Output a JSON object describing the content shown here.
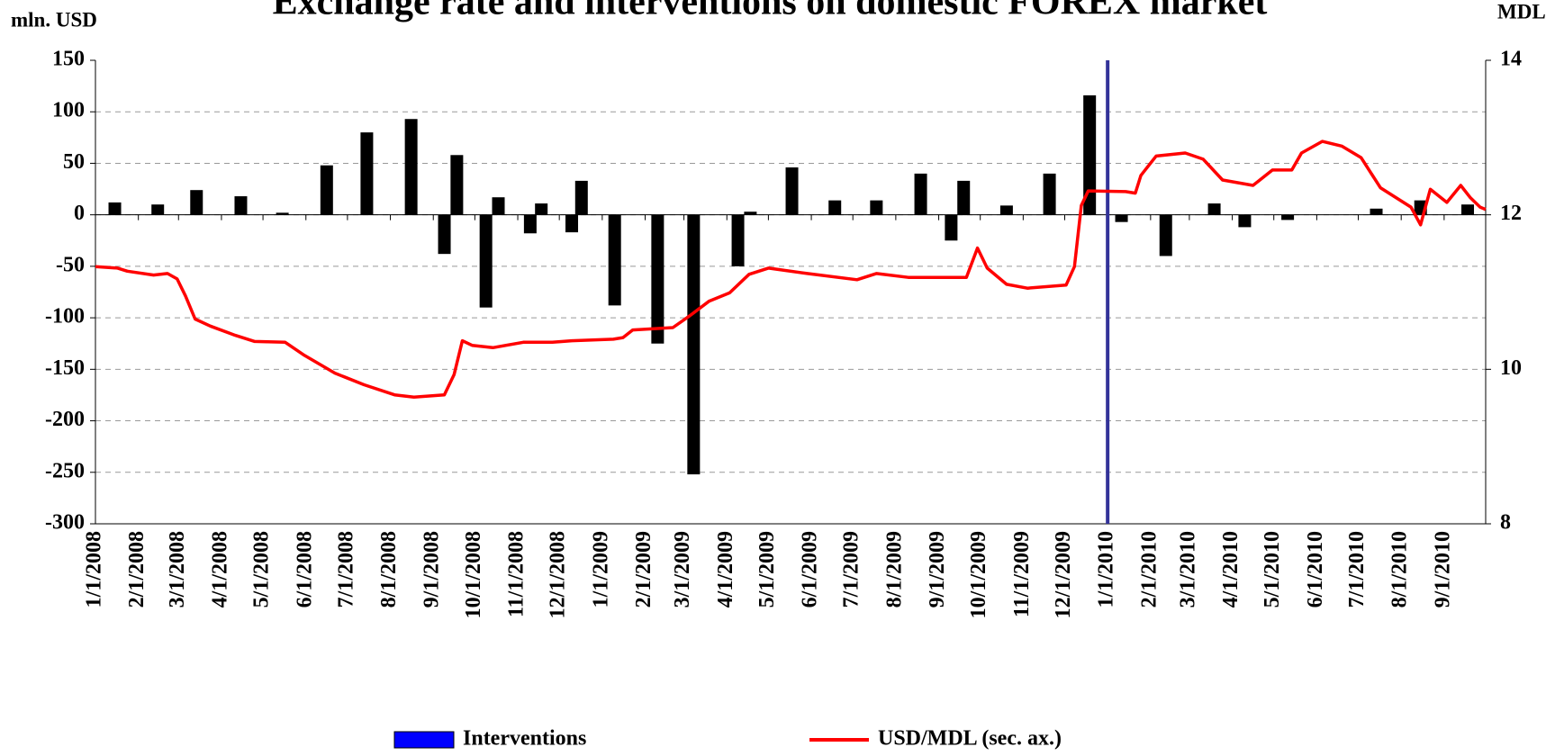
{
  "chart_data": {
    "type": "bar_line",
    "title": "Exchange rate and interventions on domestic FOREX market",
    "y_label": "mln. USD",
    "y2_label": "MDL",
    "xlim": [
      "1/1/2008",
      "10/1/2010"
    ],
    "xticks": [
      "1/1/2008",
      "2/1/2008",
      "3/1/2008",
      "4/1/2008",
      "5/1/2008",
      "6/1/2008",
      "7/1/2008",
      "8/1/2008",
      "9/1/2008",
      "10/1/2008",
      "11/1/2008",
      "12/1/2008",
      "1/1/2009",
      "2/1/2009",
      "3/1/2009",
      "4/1/2009",
      "5/1/2009",
      "6/1/2009",
      "7/1/2009",
      "8/1/2009",
      "9/1/2009",
      "10/1/2009",
      "11/1/2009",
      "12/1/2009",
      "1/1/2010",
      "2/1/2010",
      "3/1/2010",
      "4/1/2010",
      "5/1/2010",
      "6/1/2010",
      "7/1/2010",
      "8/1/2010",
      "9/1/2010"
    ],
    "ylim": [
      -300,
      150
    ],
    "yticks": [
      150,
      100,
      50,
      0,
      -50,
      -100,
      -150,
      -200,
      -250,
      -300
    ],
    "y2lim": [
      8,
      14
    ],
    "y2ticks": [
      14,
      12,
      10,
      8
    ],
    "grid": true,
    "marker_line": {
      "x": "1/1/2010",
      "color": "#333399"
    },
    "series": [
      {
        "name": "Interventions",
        "type": "bar",
        "color": "#000000",
        "legend_color": "#0000ff",
        "x": [
          "1/15/2008",
          "2/15/2008",
          "3/14/2008",
          "4/15/2008",
          "5/15/2008",
          "6/16/2008",
          "7/15/2008",
          "8/16/2008",
          "9/9/2008",
          "9/18/2008",
          "10/9/2008",
          "10/18/2008",
          "11/10/2008",
          "11/18/2008",
          "12/10/2008",
          "12/17/2008",
          "1/10/2009",
          "2/10/2009",
          "3/8/2009",
          "4/9/2009",
          "4/18/2009",
          "5/18/2009",
          "6/18/2009",
          "7/18/2009",
          "8/19/2009",
          "9/10/2009",
          "9/19/2009",
          "10/20/2009",
          "11/20/2009",
          "12/19/2009",
          "1/11/2010",
          "2/12/2010",
          "3/19/2010",
          "4/10/2010",
          "5/11/2010",
          "7/14/2010",
          "8/15/2010",
          "9/18/2010"
        ],
        "values": [
          12,
          10,
          24,
          18,
          2,
          48,
          80,
          93,
          -38,
          58,
          -90,
          17,
          -18,
          11,
          -17,
          33,
          -88,
          -125,
          -252,
          -50,
          3,
          46,
          14,
          14,
          40,
          -25,
          33,
          9,
          40,
          116,
          -7,
          -40,
          11,
          -12,
          -5,
          6,
          14,
          10
        ]
      },
      {
        "name": "USD/MDL (sec. ax.)",
        "type": "line",
        "axis": "y2",
        "color": "#ff0000",
        "x": [
          "1/1/2008",
          "1/17/2008",
          "1/24/2008",
          "2/12/2008",
          "2/22/2008",
          "2/29/2008",
          "3/6/2008",
          "3/13/2008",
          "3/24/2008",
          "4/11/2008",
          "4/25/2008",
          "5/17/2008",
          "5/31/2008",
          "6/22/2008",
          "7/13/2008",
          "8/4/2008",
          "8/18/2008",
          "9/9/2008",
          "9/16/2008",
          "9/22/2008",
          "9/29/2008",
          "10/14/2008",
          "11/5/2008",
          "11/26/2008",
          "12/10/2008",
          "1/9/2009",
          "1/16/2009",
          "1/23/2009",
          "2/21/2009",
          "3/5/2009",
          "3/19/2009",
          "4/3/2009",
          "4/17/2009",
          "5/1/2009",
          "5/29/2009",
          "7/4/2009",
          "7/18/2009",
          "8/10/2009",
          "9/7/2009",
          "9/21/2009",
          "9/29/2009",
          "10/6/2009",
          "10/20/2009",
          "11/4/2009",
          "12/2/2009",
          "12/8/2009",
          "12/13/2009",
          "12/18/2009",
          "1/14/2010",
          "1/21/2010",
          "1/25/2010",
          "2/5/2010",
          "2/26/2010",
          "3/11/2010",
          "3/25/2010",
          "4/16/2010",
          "4/30/2010",
          "5/14/2010",
          "5/21/2010",
          "6/5/2010",
          "6/19/2010",
          "7/3/2010",
          "7/17/2010",
          "8/8/2010",
          "8/15/2010",
          "8/22/2010",
          "9/3/2010",
          "9/13/2010",
          "9/20/2010",
          "9/27/2010",
          "10/1/2010"
        ],
        "values": [
          11.33,
          11.31,
          11.27,
          11.22,
          11.24,
          11.17,
          10.95,
          10.65,
          10.56,
          10.44,
          10.36,
          10.35,
          10.18,
          9.95,
          9.8,
          9.67,
          9.64,
          9.67,
          9.93,
          10.37,
          10.31,
          10.28,
          10.35,
          10.35,
          10.37,
          10.39,
          10.41,
          10.51,
          10.54,
          10.69,
          10.88,
          10.99,
          11.23,
          11.31,
          11.24,
          11.16,
          11.24,
          11.19,
          11.19,
          11.19,
          11.57,
          11.31,
          11.1,
          11.05,
          11.09,
          11.33,
          12.12,
          12.31,
          12.3,
          12.28,
          12.51,
          12.76,
          12.8,
          12.72,
          12.45,
          12.38,
          12.58,
          12.58,
          12.8,
          12.95,
          12.89,
          12.74,
          12.35,
          12.1,
          11.87,
          12.33,
          12.16,
          12.38,
          12.22,
          12.1,
          12.07
        ]
      }
    ]
  }
}
